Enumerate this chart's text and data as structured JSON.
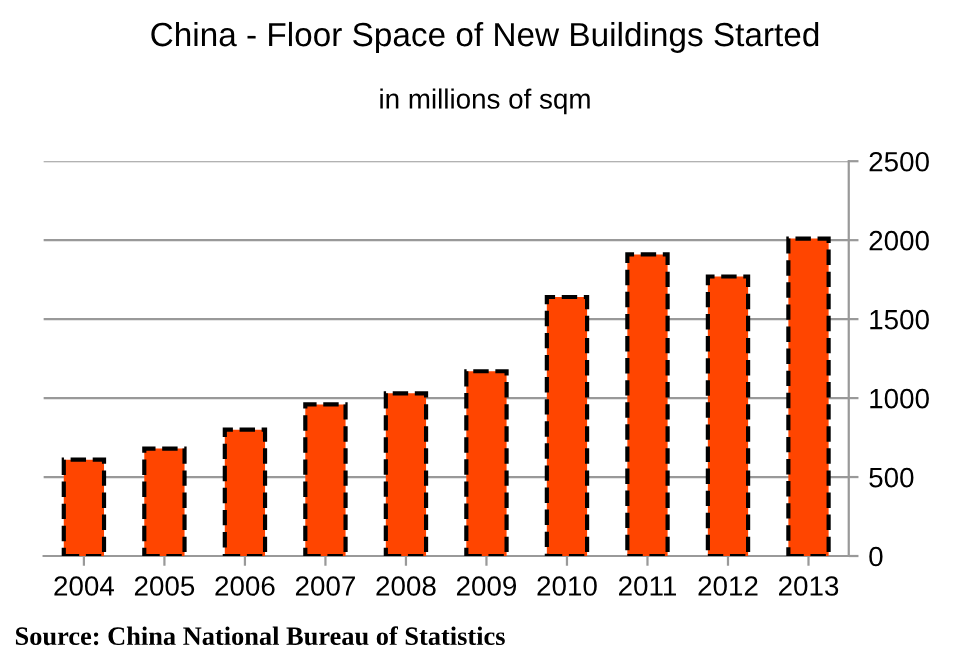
{
  "chart_data": {
    "type": "bar",
    "title": "China - Floor Space of New Buildings Started",
    "subtitle": "in millions of sqm",
    "categories": [
      "2004",
      "2005",
      "2006",
      "2007",
      "2008",
      "2009",
      "2010",
      "2011",
      "2012",
      "2013"
    ],
    "values": [
      610,
      680,
      800,
      960,
      1030,
      1170,
      1640,
      1910,
      1770,
      2010
    ],
    "color": "#ff4500",
    "ylim": [
      0,
      2500
    ],
    "yticks": [
      0,
      500,
      1000,
      1500,
      2000,
      2500
    ],
    "grid": "y",
    "annotations": [
      "Source: China National Bureau of Statistics"
    ]
  }
}
